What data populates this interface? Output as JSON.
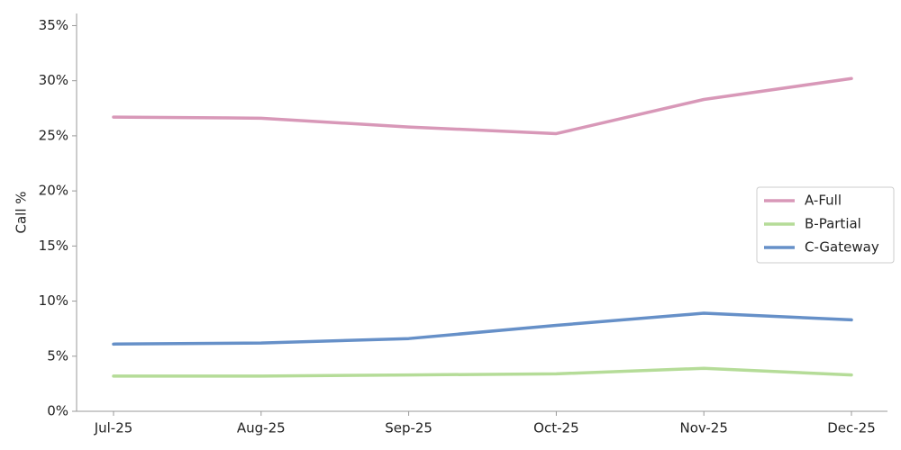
{
  "chart_data": {
    "type": "line",
    "y_label": "Call %",
    "categories": [
      "Jul-25",
      "Aug-25",
      "Sep-25",
      "Oct-25",
      "Nov-25",
      "Dec-25"
    ],
    "series": [
      {
        "name": "A-Full",
        "color": "#d898b8",
        "values": [
          26.7,
          26.6,
          25.8,
          25.2,
          28.3,
          30.2
        ]
      },
      {
        "name": "B-Partial",
        "color": "#b5dc98",
        "values": [
          3.2,
          3.2,
          3.3,
          3.4,
          3.9,
          3.3
        ]
      },
      {
        "name": "C-Gateway",
        "color": "#6690c8",
        "values": [
          6.1,
          6.2,
          6.6,
          7.8,
          8.9,
          8.3
        ]
      }
    ],
    "ylim": [
      0,
      36.1
    ],
    "yticks": [
      {
        "value": 0,
        "label": "0%"
      },
      {
        "value": 5,
        "label": "5%"
      },
      {
        "value": 10,
        "label": "10%"
      },
      {
        "value": 15,
        "label": "15%"
      },
      {
        "value": 20,
        "label": "20%"
      },
      {
        "value": 25,
        "label": "25%"
      },
      {
        "value": 30,
        "label": "30%"
      },
      {
        "value": 35,
        "label": "35%"
      }
    ],
    "legend": "right"
  }
}
